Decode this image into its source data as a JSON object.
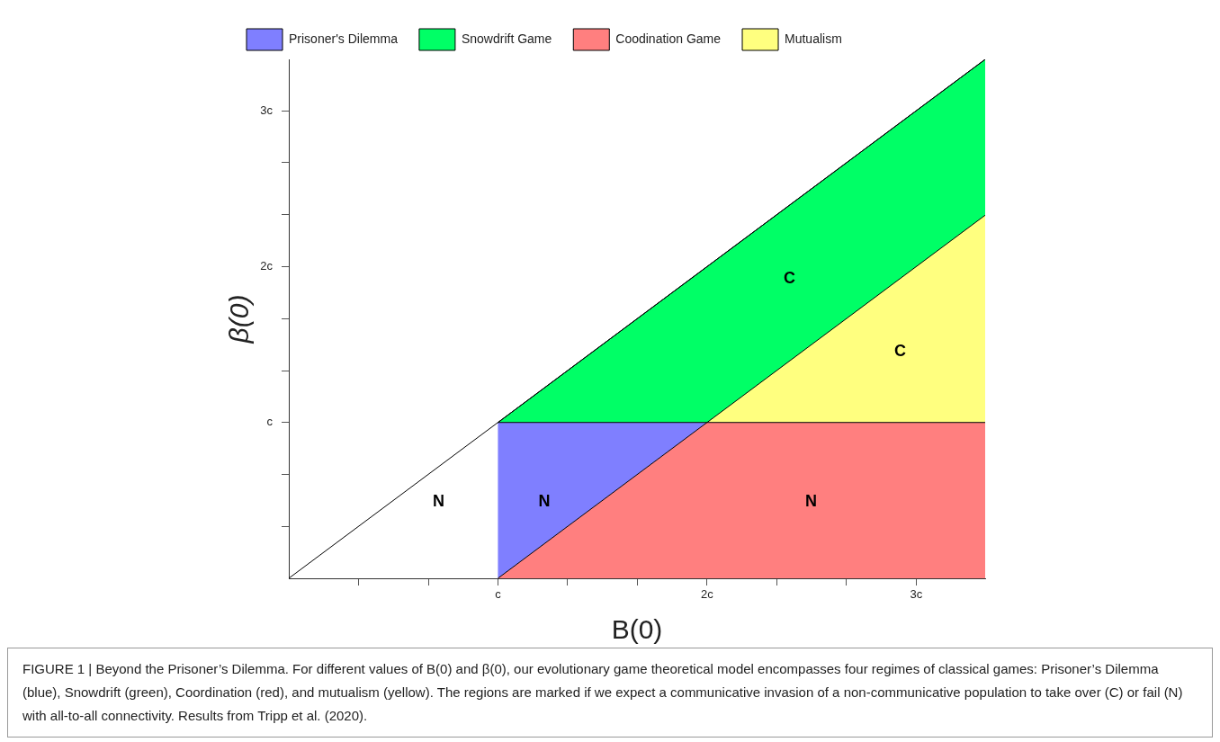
{
  "chart_data": {
    "type": "area",
    "stacked": true,
    "xlabel": "B(0)",
    "ylabel": "β(0)",
    "x": [
      1,
      2,
      3.33
    ],
    "xlim": [
      0,
      3.33
    ],
    "ylim": [
      0,
      3.33
    ],
    "xticks": [
      {
        "value": 0.333,
        "label": null
      },
      {
        "value": 0.667,
        "label": null
      },
      {
        "value": 1,
        "label": "c"
      },
      {
        "value": 1.333,
        "label": null
      },
      {
        "value": 1.667,
        "label": null
      },
      {
        "value": 2,
        "label": "2c"
      },
      {
        "value": 2.333,
        "label": null
      },
      {
        "value": 2.667,
        "label": null
      },
      {
        "value": 3,
        "label": "3c"
      }
    ],
    "yticks": [
      {
        "value": 0.333,
        "label": null
      },
      {
        "value": 0.667,
        "label": null
      },
      {
        "value": 1,
        "label": "c"
      },
      {
        "value": 1.333,
        "label": null
      },
      {
        "value": 1.667,
        "label": null
      },
      {
        "value": 2,
        "label": "2c"
      },
      {
        "value": 2.333,
        "label": null
      },
      {
        "value": 2.667,
        "label": null
      },
      {
        "value": 3,
        "label": "3c"
      }
    ],
    "series": [
      {
        "name": "Coodination Game",
        "color": "#ff7f7f",
        "values": [
          0,
          1,
          1
        ]
      },
      {
        "name": "Prisoner's Dilemma",
        "color": "#7f7fff",
        "values": [
          1,
          0,
          null
        ]
      },
      {
        "name": "Mutualism",
        "color": "#ffff7f",
        "values": [
          null,
          0,
          1.33
        ]
      },
      {
        "name": "Snowdrift Game",
        "color": "#00ff66",
        "values": [
          0,
          1,
          1
        ]
      },
      {
        "type": "line",
        "color": "#000000",
        "x": [
          0,
          3.33
        ],
        "values": [
          0,
          3.33
        ]
      }
    ],
    "legend": "top left",
    "grid": false,
    "marker": "none",
    "annotations": [
      "C",
      "C",
      "N",
      "N",
      "N",
      "FIGURE 1 | Beyond the Prisoner’s Dilemma. For different values of B(0) and β(0), our evolutionary game theoretical model encompasses four regimes of classical games: Prisoner’s Dilemma (blue), Snowdrift (green), Coordination (red), and mutualism (yellow). The regions are marked if we expect a communicative invasion of a non-communicative population to take over (C) or fail (N) with all-to-all connectivity. Results from Tripp et al. (2020)."
    ]
  }
}
